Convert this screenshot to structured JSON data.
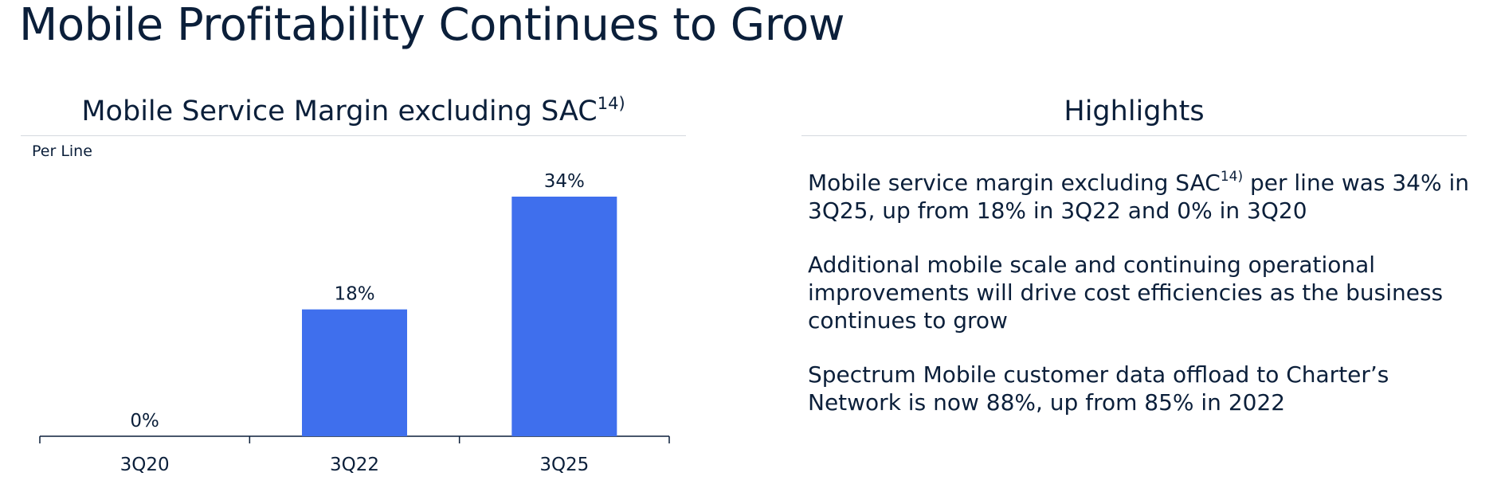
{
  "page": {
    "title": "Mobile Profitability Continues to Grow"
  },
  "colors": {
    "bar": "#3f6fed",
    "text": "#0b1f3a",
    "axis": "#0b1f3a",
    "rule": "#d4d8de"
  },
  "chart_data": {
    "type": "bar",
    "title": "Mobile Service Margin excluding SAC",
    "title_superscript": "14)",
    "subtitle": "Per Line",
    "categories": [
      "3Q20",
      "3Q22",
      "3Q25"
    ],
    "values": [
      0,
      18,
      34
    ],
    "data_labels": [
      "0%",
      "18%",
      "34%"
    ],
    "unit": "%",
    "xlabel": "",
    "ylabel": "",
    "ylim": [
      0,
      34
    ],
    "grid": false,
    "legend": "none"
  },
  "highlights": {
    "title": "Highlights",
    "items": [
      {
        "before": "Mobile service margin excluding SAC",
        "sup": "14)",
        "after": " per line was 34% in 3Q25, up from 18% in 3Q22 and 0% in 3Q20"
      },
      {
        "text": "Additional mobile scale and continuing operational improvements will drive cost efficiencies as the business continues to grow"
      },
      {
        "text": "Spectrum Mobile customer data offload to Charter’s Network is now 88%, up from 85% in 2022"
      }
    ]
  }
}
